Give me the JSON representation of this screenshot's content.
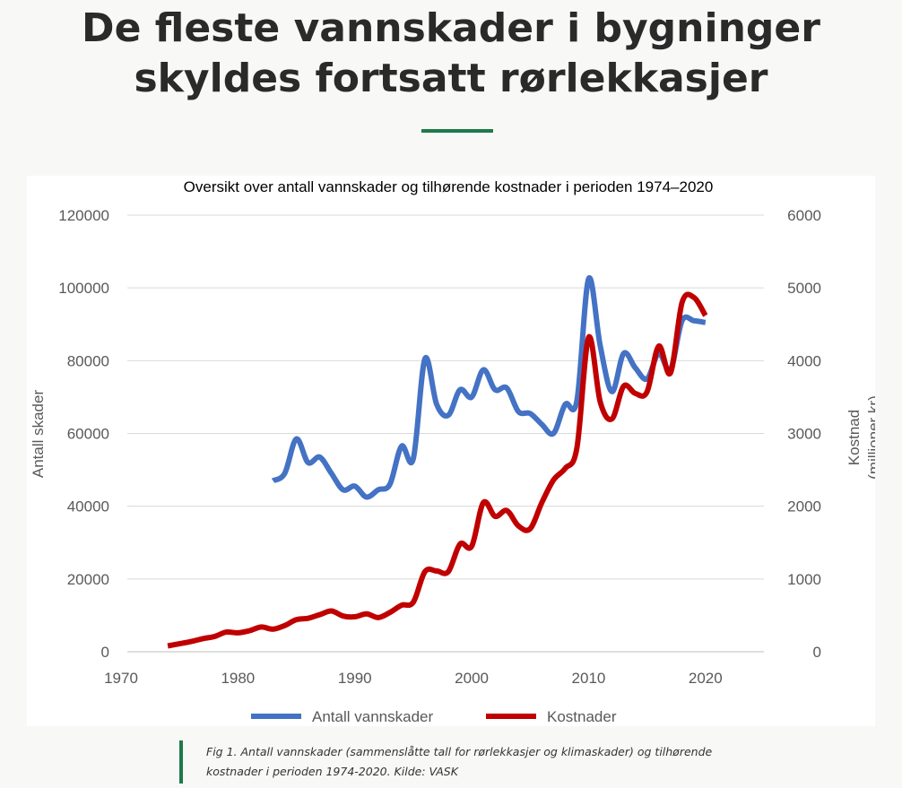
{
  "page": {
    "headline": "De fleste vannskader i bygninger skyldes fortsatt rørlekkasjer",
    "caption": "Fig 1. Antall vannskader (sammenslåtte tall for rørlekkasjer og klimaskader) og tilhørende kostnader i perioden 1974-2020. Kilde: VASK"
  },
  "colors": {
    "accent": "#1f7a4c",
    "series_blue": "#4472c4",
    "series_red": "#c00000",
    "grid": "#d9d9d9",
    "tick_text": "#595959"
  },
  "chart_data": {
    "type": "line",
    "title": "Oversikt over  antall vannskader og tilhørende kostnader i perioden 1974–2020",
    "ylabel": "Antall skader",
    "y2label_line1": "Kostnad",
    "y2label_line2": "(millioner kr)",
    "xlim": [
      1970,
      2025
    ],
    "ylim": [
      0,
      120000
    ],
    "y2lim": [
      0,
      6000
    ],
    "x_ticks": [
      "1970",
      "1980",
      "1990",
      "2000",
      "2010",
      "2020"
    ],
    "y_ticks": [
      "0",
      "20000",
      "40000",
      "60000",
      "80000",
      "100000",
      "120000"
    ],
    "y2_ticks": [
      "0",
      "1000",
      "2000",
      "3000",
      "4000",
      "5000",
      "6000"
    ],
    "legend_position": "bottom",
    "series": [
      {
        "name": "Antall vannskader",
        "axis": "left",
        "color": "#4472c4",
        "x": [
          1983,
          1984,
          1985,
          1986,
          1987,
          1988,
          1989,
          1990,
          1991,
          1992,
          1993,
          1994,
          1995,
          1996,
          1997,
          1998,
          1999,
          2000,
          2001,
          2002,
          2003,
          2004,
          2005,
          2006,
          2007,
          2008,
          2009,
          2010,
          2011,
          2012,
          2013,
          2014,
          2015,
          2016,
          2017,
          2018,
          2019,
          2020
        ],
        "y": [
          47000,
          49000,
          58500,
          52000,
          53500,
          49000,
          44500,
          45500,
          42500,
          44500,
          46000,
          56500,
          53000,
          80500,
          68000,
          65000,
          72000,
          70000,
          77500,
          72000,
          72500,
          66000,
          65500,
          62500,
          60000,
          68000,
          69000,
          102500,
          84000,
          71500,
          82000,
          78000,
          75000,
          82000,
          77500,
          91000,
          91000,
          90500
        ]
      },
      {
        "name": "Kostnader",
        "axis": "right",
        "color": "#c00000",
        "x": [
          1974,
          1975,
          1976,
          1977,
          1978,
          1979,
          1980,
          1981,
          1982,
          1983,
          1984,
          1985,
          1986,
          1987,
          1988,
          1989,
          1990,
          1991,
          1992,
          1993,
          1994,
          1995,
          1996,
          1997,
          1998,
          1999,
          2000,
          2001,
          2002,
          2003,
          2004,
          2005,
          2006,
          2007,
          2008,
          2009,
          2010,
          2011,
          2012,
          2013,
          2014,
          2015,
          2016,
          2017,
          2018,
          2019,
          2020
        ],
        "y": [
          80,
          110,
          140,
          180,
          210,
          270,
          260,
          290,
          340,
          310,
          360,
          440,
          460,
          510,
          560,
          490,
          480,
          520,
          470,
          540,
          640,
          680,
          1100,
          1110,
          1100,
          1480,
          1450,
          2050,
          1860,
          1940,
          1730,
          1690,
          2050,
          2360,
          2520,
          2800,
          4320,
          3430,
          3200,
          3650,
          3550,
          3570,
          4200,
          3830,
          4800,
          4870,
          4620
        ]
      }
    ]
  }
}
